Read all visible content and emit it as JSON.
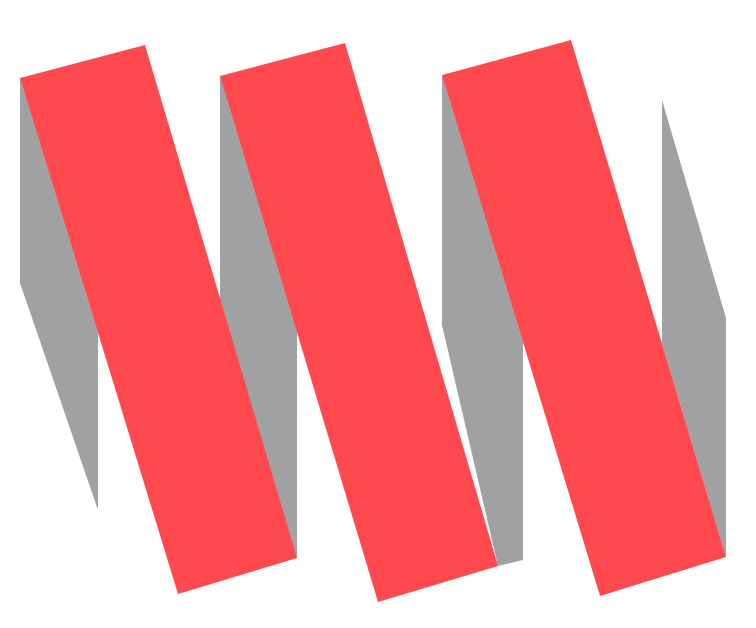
{
  "logo": {
    "colors": {
      "band": "#fe4a4e",
      "shadow": "#9fa1a2",
      "background": "#ffffff"
    },
    "band_count": 3
  }
}
